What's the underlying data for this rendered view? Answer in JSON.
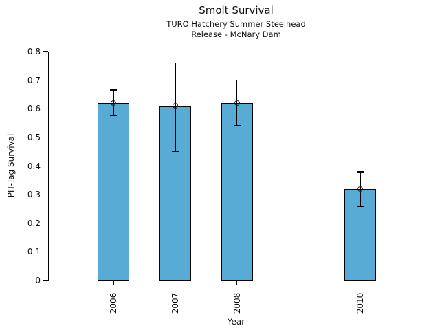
{
  "figure": {
    "title": "Smolt Survival",
    "subtitle_line1": "TURO Hatchery Summer Steelhead",
    "subtitle_line2": "Release - McNary Dam"
  },
  "chart_data": {
    "type": "bar",
    "title": "Smolt Survival",
    "subtitle": [
      "TURO Hatchery Summer Steelhead",
      "Release - McNary Dam"
    ],
    "categories": [
      "2006",
      "2007",
      "2008",
      "2010"
    ],
    "x_numeric": [
      2006,
      2007,
      2008,
      2010
    ],
    "values": [
      0.62,
      0.61,
      0.62,
      0.32
    ],
    "error_low": [
      0.575,
      0.45,
      0.54,
      0.26
    ],
    "error_high": [
      0.665,
      0.76,
      0.7,
      0.38
    ],
    "xlabel": "Year",
    "ylabel": "PIT-Tag Survival",
    "ylim": [
      0,
      0.8
    ],
    "xlim_numeric": [
      2004.95,
      2011.05
    ],
    "yticks": [
      "0",
      "0.1",
      "0.2",
      "0.3",
      "0.4",
      "0.5",
      "0.6",
      "0.7",
      "0.8"
    ],
    "grid": "off",
    "legend": "none",
    "bar_color": "#58ABD5",
    "bar_edge_color": "#000000",
    "error_color": "#000000",
    "marker": "open-circle"
  }
}
